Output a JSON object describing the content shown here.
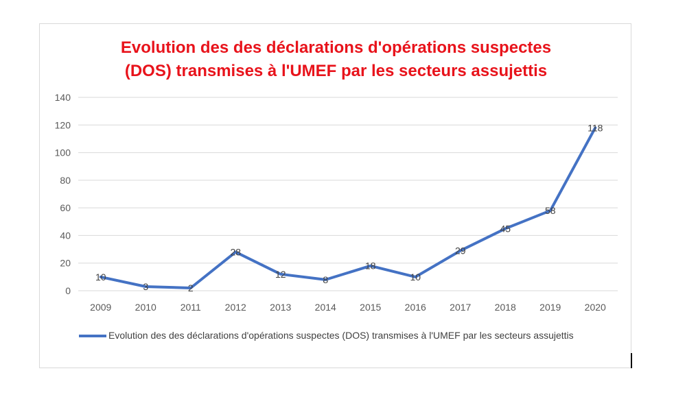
{
  "chart_data": {
    "type": "line",
    "title_lines": [
      "Evolution des des déclarations d'opérations suspectes",
      "(DOS) transmises à l'UMEF par les secteurs assujettis"
    ],
    "categories": [
      "2009",
      "2010",
      "2011",
      "2012",
      "2013",
      "2014",
      "2015",
      "2016",
      "2017",
      "2018",
      "2019",
      "2020"
    ],
    "series": [
      {
        "name": "Evolution des des déclarations d'opérations suspectes (DOS) transmises à l'UMEF par les secteurs assujettis",
        "values": [
          10,
          3,
          2,
          28,
          12,
          8,
          18,
          10,
          29,
          45,
          58,
          118
        ],
        "color": "#4472c4"
      }
    ],
    "yticks": [
      "0",
      "20",
      "40",
      "60",
      "80",
      "100",
      "120",
      "140"
    ],
    "ylim": [
      0,
      140
    ],
    "grid": true,
    "data_labels": true,
    "legend_position": "bottom",
    "title_color": "#e8131b",
    "gridline_color": "#d9d9d9"
  }
}
